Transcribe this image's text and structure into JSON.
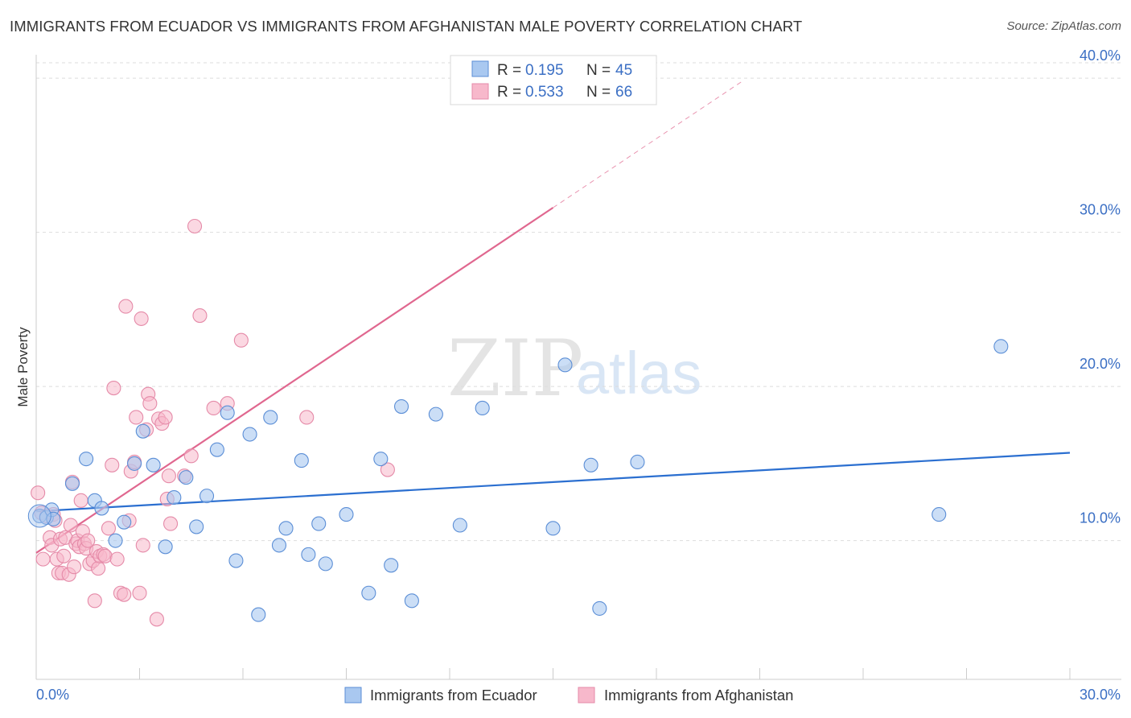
{
  "title": "IMMIGRANTS FROM ECUADOR VS IMMIGRANTS FROM AFGHANISTAN MALE POVERTY CORRELATION CHART",
  "source": "Source: ZipAtlas.com",
  "watermark": {
    "zip": "ZIP",
    "atlas": "atlas"
  },
  "legend": {
    "r_label": "R =",
    "n_label": "N =",
    "entries": [
      {
        "r": "0.195",
        "n": "45"
      },
      {
        "r": "0.533",
        "n": "66"
      }
    ]
  },
  "bottom_legend": [
    "Immigrants from Ecuador",
    "Immigrants from Afghanistan"
  ],
  "colors": {
    "ecuador_fill": "#a9c8f0",
    "ecuador_stroke": "#5b8ed6",
    "ecuador_line": "#2b6fd0",
    "afghan_fill": "#f7b8cb",
    "afghan_stroke": "#e58aa8",
    "afghan_line": "#e0678f",
    "tick_text": "#3b6fc4"
  },
  "chart_data": {
    "type": "scatter",
    "title": "IMMIGRANTS FROM ECUADOR VS IMMIGRANTS FROM AFGHANISTAN MALE POVERTY CORRELATION CHART",
    "xlabel": "",
    "ylabel": "Male Poverty",
    "xlim": [
      0,
      30
    ],
    "ylim": [
      1,
      41
    ],
    "x_tick_labels": [
      {
        "value": 0,
        "label": "0.0%"
      },
      {
        "value": 30,
        "label": "30.0%"
      }
    ],
    "y_tick_labels": [
      {
        "value": 10,
        "label": "10.0%"
      },
      {
        "value": 20,
        "label": "20.0%"
      },
      {
        "value": 30,
        "label": "30.0%"
      },
      {
        "value": 40,
        "label": "40.0%"
      }
    ],
    "grid": true,
    "series": [
      {
        "name": "Immigrants from Ecuador",
        "R": 0.195,
        "N": 45,
        "trend": {
          "x0": 0,
          "y0": 11.9,
          "x1": 30,
          "y1": 15.7,
          "dashed_extension": false
        },
        "points": [
          [
            0.1,
            11.6
          ],
          [
            0.3,
            11.5
          ],
          [
            0.45,
            12.0
          ],
          [
            0.5,
            11.4
          ],
          [
            1.05,
            13.7
          ],
          [
            1.45,
            15.3
          ],
          [
            1.7,
            12.6
          ],
          [
            1.9,
            12.1
          ],
          [
            2.3,
            10.0
          ],
          [
            2.55,
            11.2
          ],
          [
            2.85,
            15.0
          ],
          [
            3.1,
            17.1
          ],
          [
            3.4,
            14.9
          ],
          [
            3.75,
            9.6
          ],
          [
            4.0,
            12.8
          ],
          [
            4.35,
            14.1
          ],
          [
            4.65,
            10.9
          ],
          [
            4.95,
            12.9
          ],
          [
            5.25,
            15.9
          ],
          [
            5.55,
            18.3
          ],
          [
            5.8,
            8.7
          ],
          [
            6.2,
            16.9
          ],
          [
            6.45,
            5.2
          ],
          [
            6.8,
            18.0
          ],
          [
            7.05,
            9.7
          ],
          [
            7.25,
            10.8
          ],
          [
            7.7,
            15.2
          ],
          [
            7.9,
            9.1
          ],
          [
            8.2,
            11.1
          ],
          [
            8.4,
            8.5
          ],
          [
            9.0,
            11.7
          ],
          [
            9.65,
            6.6
          ],
          [
            10.0,
            15.3
          ],
          [
            10.3,
            8.4
          ],
          [
            10.6,
            18.7
          ],
          [
            10.9,
            6.1
          ],
          [
            11.6,
            18.2
          ],
          [
            12.3,
            11.0
          ],
          [
            12.95,
            18.6
          ],
          [
            15.0,
            10.8
          ],
          [
            15.35,
            21.4
          ],
          [
            16.1,
            14.9
          ],
          [
            16.35,
            5.6
          ],
          [
            17.45,
            15.1
          ],
          [
            26.2,
            11.7
          ],
          [
            28.0,
            22.6
          ]
        ]
      },
      {
        "name": "Immigrants from Afghanistan",
        "R": 0.533,
        "N": 66,
        "trend": {
          "x0": 0,
          "y0": 9.2,
          "x1": 15.0,
          "y1": 31.6,
          "dashed_to_x": 20.5
        },
        "points": [
          [
            0.05,
            13.1
          ],
          [
            0.15,
            11.8
          ],
          [
            0.2,
            8.8
          ],
          [
            0.3,
            11.6
          ],
          [
            0.4,
            10.2
          ],
          [
            0.45,
            9.7
          ],
          [
            0.5,
            11.7
          ],
          [
            0.55,
            11.3
          ],
          [
            0.6,
            8.8
          ],
          [
            0.65,
            7.9
          ],
          [
            0.7,
            10.1
          ],
          [
            0.75,
            7.9
          ],
          [
            0.8,
            9.0
          ],
          [
            0.85,
            10.2
          ],
          [
            0.95,
            7.8
          ],
          [
            1.0,
            11.0
          ],
          [
            1.05,
            13.8
          ],
          [
            1.1,
            8.3
          ],
          [
            1.15,
            9.8
          ],
          [
            1.2,
            10.0
          ],
          [
            1.25,
            9.6
          ],
          [
            1.3,
            12.6
          ],
          [
            1.35,
            10.6
          ],
          [
            1.4,
            9.8
          ],
          [
            1.45,
            9.5
          ],
          [
            1.5,
            10.0
          ],
          [
            1.55,
            8.5
          ],
          [
            1.65,
            8.7
          ],
          [
            1.7,
            6.1
          ],
          [
            1.75,
            9.3
          ],
          [
            1.8,
            8.2
          ],
          [
            1.85,
            9.0
          ],
          [
            1.95,
            9.1
          ],
          [
            2.0,
            9.0
          ],
          [
            2.1,
            10.8
          ],
          [
            2.2,
            14.9
          ],
          [
            2.25,
            19.9
          ],
          [
            2.35,
            8.8
          ],
          [
            2.45,
            6.6
          ],
          [
            2.55,
            6.5
          ],
          [
            2.6,
            25.2
          ],
          [
            2.7,
            11.3
          ],
          [
            2.75,
            14.5
          ],
          [
            2.85,
            15.1
          ],
          [
            2.9,
            18.0
          ],
          [
            3.0,
            6.6
          ],
          [
            3.05,
            24.4
          ],
          [
            3.1,
            9.7
          ],
          [
            3.2,
            17.2
          ],
          [
            3.25,
            19.5
          ],
          [
            3.3,
            18.9
          ],
          [
            3.5,
            4.9
          ],
          [
            3.55,
            17.9
          ],
          [
            3.65,
            17.6
          ],
          [
            3.75,
            18.0
          ],
          [
            3.8,
            12.7
          ],
          [
            3.85,
            14.2
          ],
          [
            3.9,
            11.1
          ],
          [
            4.3,
            14.2
          ],
          [
            4.5,
            15.5
          ],
          [
            4.6,
            30.4
          ],
          [
            4.75,
            24.6
          ],
          [
            5.15,
            18.6
          ],
          [
            5.55,
            18.9
          ],
          [
            5.95,
            23.0
          ],
          [
            7.85,
            18.0
          ],
          [
            10.2,
            14.6
          ]
        ]
      }
    ]
  }
}
